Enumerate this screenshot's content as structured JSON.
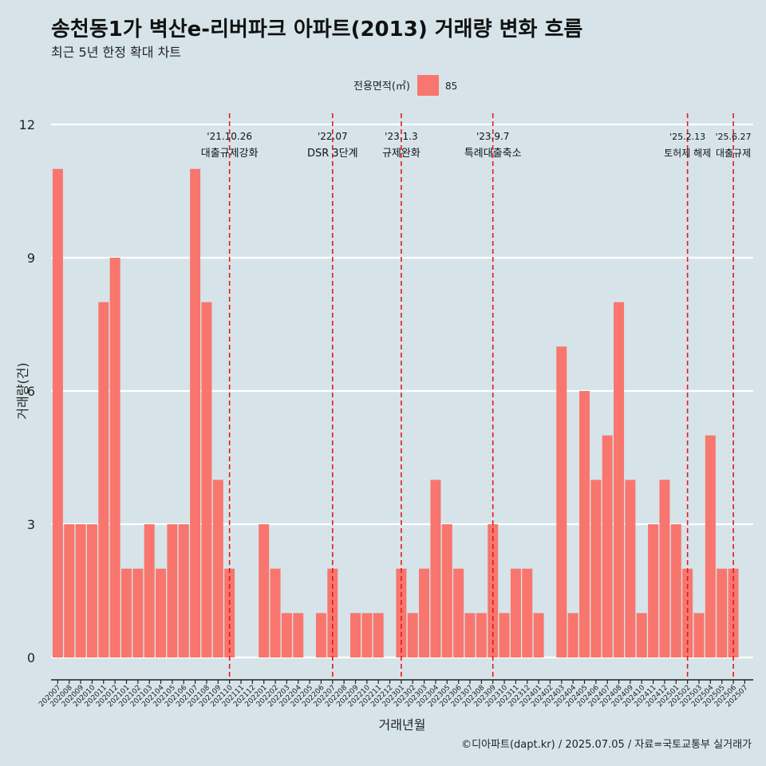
{
  "header": {
    "title": "송천동1가 벽산e-리버파크 아파트(2013) 거래량 변화 흐름",
    "subtitle": "최근 5년 한정 확대 차트"
  },
  "footer": {
    "caption": "©디아파트(dapt.kr) / 2025.07.05 / 자료=국토교통부 실거래가"
  },
  "chart_data": {
    "type": "bar",
    "xlabel": "거래년월",
    "ylabel": "거래량(건)",
    "ylim": [
      0,
      12
    ],
    "yticks": [
      0,
      3,
      6,
      9,
      12
    ],
    "grid": "horizontal",
    "legend": {
      "title": "전용면적(㎡)",
      "placement": "top",
      "entries": [
        {
          "name": "85",
          "color": "#f8766d"
        }
      ]
    },
    "bar_color": "#f8766d",
    "categories": [
      "202007",
      "202008",
      "202009",
      "202010",
      "202011",
      "202012",
      "202101",
      "202102",
      "202103",
      "202104",
      "202105",
      "202106",
      "202107",
      "202108",
      "202109",
      "202110",
      "202111",
      "202112",
      "202201",
      "202202",
      "202203",
      "202204",
      "202205",
      "202206",
      "202207",
      "202208",
      "202209",
      "202210",
      "202211",
      "202212",
      "202301",
      "202302",
      "202303",
      "202304",
      "202305",
      "202306",
      "202307",
      "202308",
      "202309",
      "202310",
      "202311",
      "202312",
      "202401",
      "202402",
      "202403",
      "202404",
      "202405",
      "202406",
      "202407",
      "202408",
      "202409",
      "202410",
      "202411",
      "202412",
      "202501",
      "202502",
      "202503",
      "202504",
      "202505",
      "202506",
      "202507"
    ],
    "series": [
      {
        "name": "85",
        "values": [
          11,
          3,
          3,
          3,
          8,
          9,
          2,
          2,
          3,
          2,
          3,
          3,
          11,
          8,
          4,
          2,
          0,
          0,
          3,
          2,
          1,
          1,
          0,
          1,
          2,
          0,
          1,
          1,
          1,
          0,
          2,
          1,
          2,
          4,
          3,
          2,
          1,
          1,
          3,
          1,
          2,
          2,
          1,
          0,
          7,
          1,
          6,
          4,
          5,
          8,
          4,
          1,
          3,
          4,
          3,
          2,
          1,
          5,
          2,
          2,
          0
        ]
      }
    ],
    "annotations": [
      {
        "x": "202110",
        "date": "'21.10.26",
        "label": "대출규제강화"
      },
      {
        "x": "202207",
        "date": "'22.07",
        "label": "DSR 3단계"
      },
      {
        "x": "202301",
        "date": "'23.1.3",
        "label": "규제완화"
      },
      {
        "x": "202309",
        "date": "'23.9.7",
        "label": "특례대출축소"
      },
      {
        "x": "202502",
        "date": "'25.2.13",
        "label": "토허제 해제"
      },
      {
        "x": "202506",
        "date": "'25.6.27",
        "label": "대출규제"
      }
    ],
    "annotation_line_color": "#e31a1c"
  }
}
